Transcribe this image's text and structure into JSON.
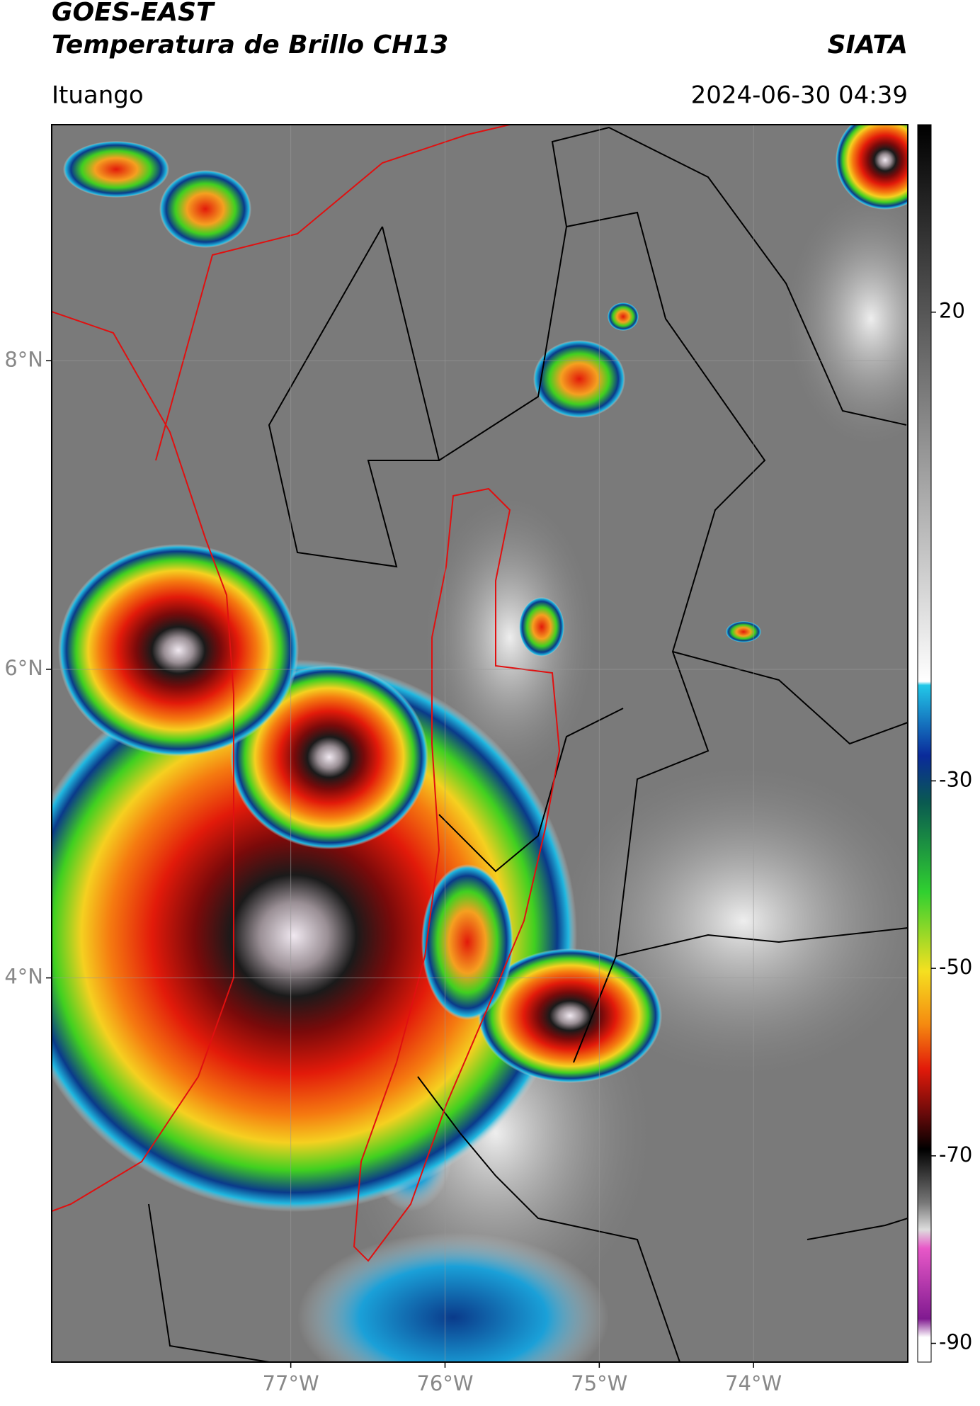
{
  "header": {
    "title": "GOES-EAST",
    "subtitle": "Temperatura de Brillo CH13",
    "source": "SIATA",
    "location": "Ituango",
    "datetime": "2024-06-30 04:39"
  },
  "map": {
    "xlim": [
      -78.55,
      -73.0
    ],
    "ylim": [
      1.51,
      9.53
    ],
    "xticks": [
      {
        "value": -77,
        "label": "77°W"
      },
      {
        "value": -76,
        "label": "76°W"
      },
      {
        "value": -75,
        "label": "75°W"
      },
      {
        "value": -74,
        "label": "74°W"
      }
    ],
    "yticks": [
      {
        "value": 4,
        "label": "4°N"
      },
      {
        "value": 6,
        "label": "6°N"
      },
      {
        "value": 8,
        "label": "8°N"
      }
    ],
    "grid": true
  },
  "colorbar": {
    "lim": [
      -92,
      40
    ],
    "ticks": [
      20,
      -30,
      -50,
      -70,
      -90
    ]
  }
}
